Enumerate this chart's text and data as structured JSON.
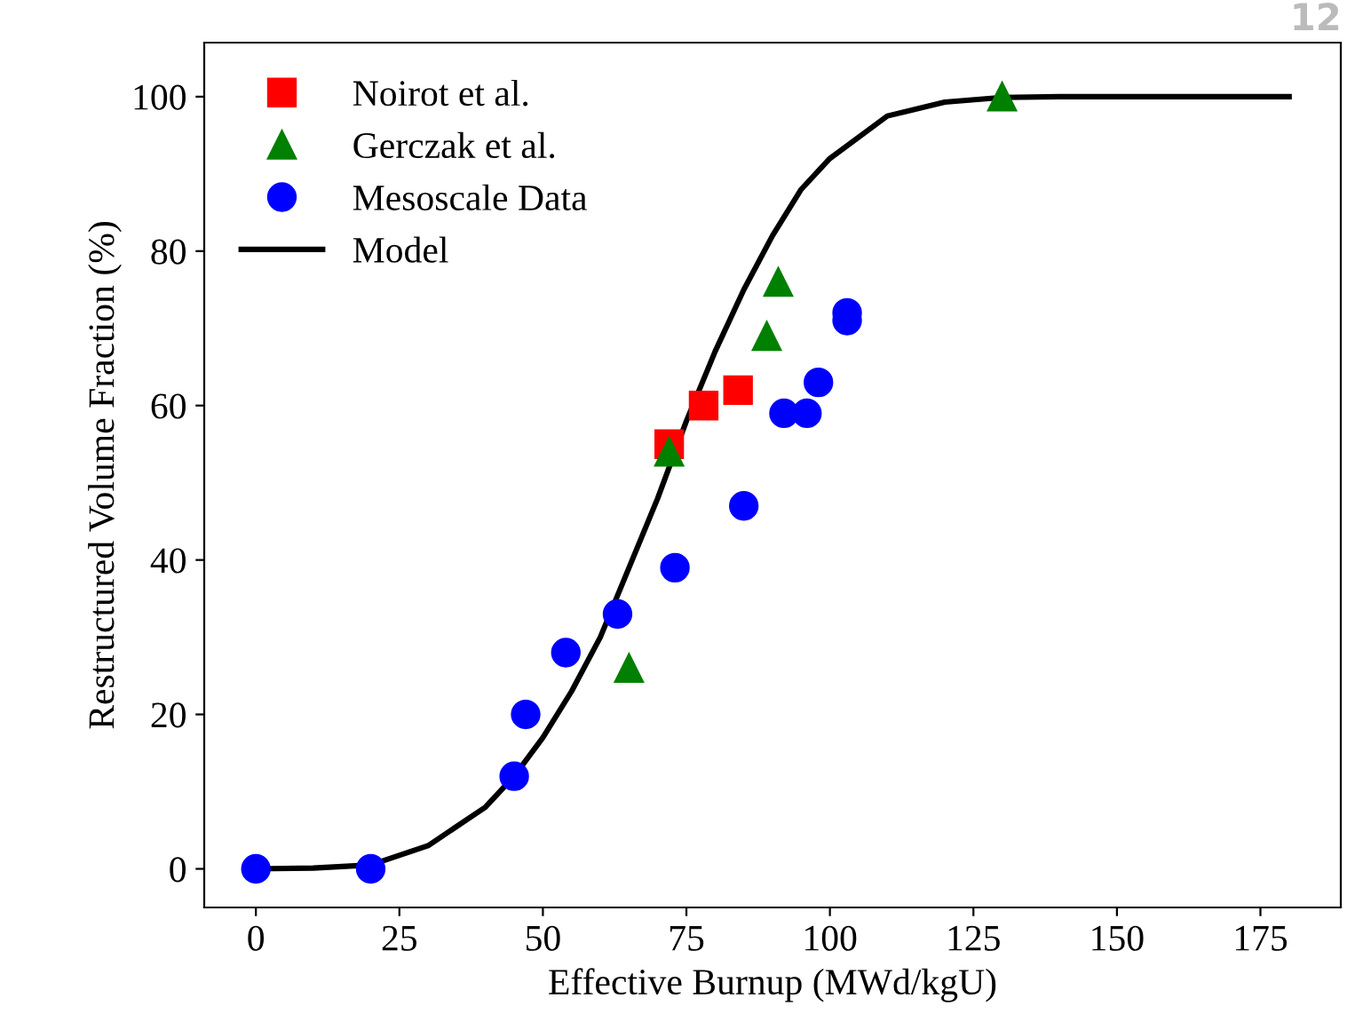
{
  "chart_data": {
    "type": "scatter",
    "xlabel": "Effective Burnup (MWd/kgU)",
    "ylabel": "Restructured Volume Fraction (%)",
    "xlim": [
      -9,
      189
    ],
    "ylim": [
      -5,
      107
    ],
    "xticks": [
      0,
      25,
      50,
      75,
      100,
      125,
      150,
      175
    ],
    "yticks": [
      0,
      20,
      40,
      60,
      80,
      100
    ],
    "grid": false,
    "legend": "top left",
    "annotations": [
      "12"
    ],
    "series": [
      {
        "name": "Noirot et al.",
        "marker": "square",
        "color": "#ff0000",
        "x": [
          72,
          78,
          84
        ],
        "values": [
          55,
          60,
          62
        ]
      },
      {
        "name": "Gerczak et al.",
        "marker": "triangle",
        "color": "#008000",
        "x": [
          65,
          72,
          89,
          91,
          130
        ],
        "values": [
          26,
          54,
          69,
          76,
          100
        ]
      },
      {
        "name": "Mesoscale Data",
        "marker": "circle",
        "color": "#0000ff",
        "x": [
          0,
          20,
          45,
          47,
          54,
          63,
          73,
          85,
          92,
          96,
          98,
          103,
          103
        ],
        "values": [
          0,
          0,
          12,
          20,
          28,
          33,
          39,
          47,
          59,
          59,
          63,
          71,
          72
        ]
      },
      {
        "name": "Model",
        "type": "line",
        "marker": "none",
        "line_style": "solid",
        "color": "#000000",
        "x": [
          0,
          10,
          20,
          30,
          40,
          45,
          50,
          55,
          60,
          65,
          70,
          75,
          80,
          85,
          90,
          95,
          100,
          110,
          120,
          130,
          140,
          180
        ],
        "values": [
          0,
          0.1,
          0.5,
          3,
          8,
          12,
          17,
          23,
          30,
          39,
          48,
          58,
          67,
          75,
          82,
          88,
          92,
          97.5,
          99.3,
          99.9,
          100,
          100
        ]
      }
    ]
  }
}
